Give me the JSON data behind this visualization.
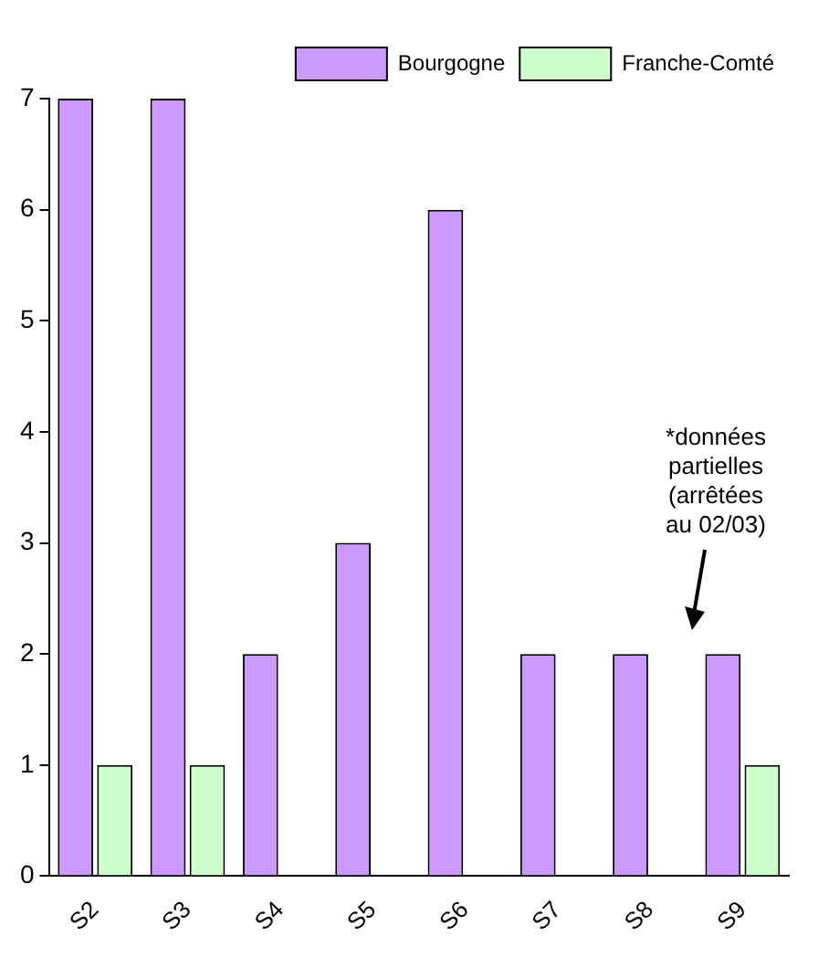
{
  "chart_data": {
    "type": "bar",
    "categories": [
      "S2",
      "S3",
      "S4",
      "S5",
      "S6",
      "S7",
      "S8",
      "S9"
    ],
    "series": [
      {
        "name": "Bourgogne",
        "color": "#cc99ff",
        "values": [
          7,
          7,
          2,
          3,
          6,
          2,
          2,
          2
        ]
      },
      {
        "name": "Franche-Comté",
        "color": "#ccffcc",
        "values": [
          1,
          1,
          0,
          0,
          0,
          0,
          0,
          1
        ]
      }
    ],
    "ylim": [
      0,
      7
    ],
    "yticks": [
      0,
      1,
      2,
      3,
      4,
      5,
      6,
      7
    ],
    "grid": false,
    "legend": "top right",
    "annotations": [
      "*données partielles (arrêtées au 02/03)"
    ]
  }
}
